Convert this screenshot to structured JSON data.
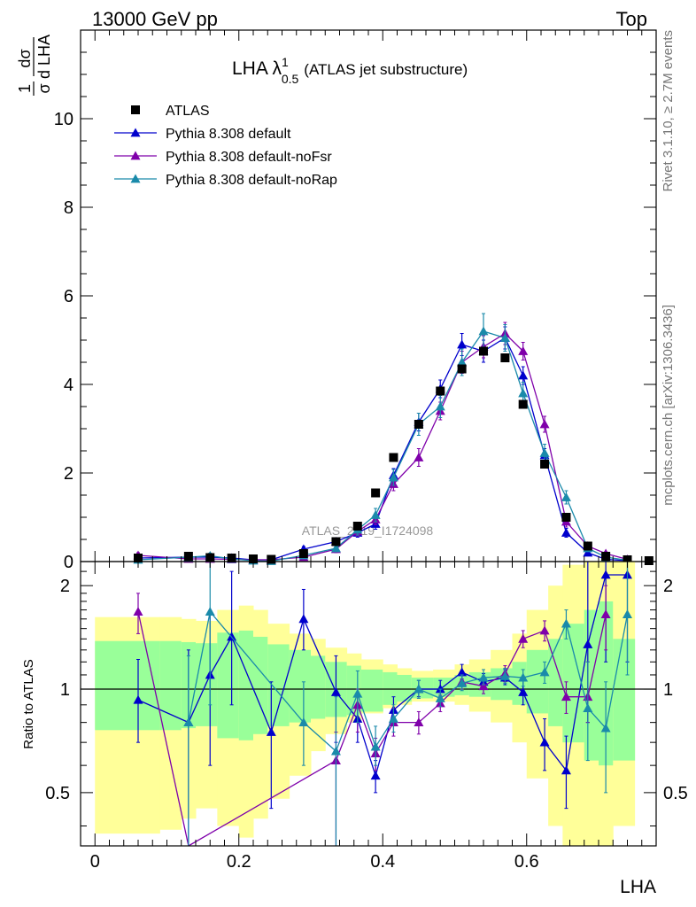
{
  "header": {
    "left": "13000 GeV pp",
    "right": "Top"
  },
  "side_text": {
    "rivet": "Rivet 3.1.10, ≥ 2.7M events",
    "mcplots": "mcplots.cern.ch [arXiv:1306.3436]"
  },
  "watermark": "ATLAS_2019_I1724098",
  "chart_data": [
    {
      "type": "line",
      "title": "LHA λ¹₀.₅ (ATLAS jet substructure)",
      "title_main": "LHA λ",
      "title_sup": "1",
      "title_sub": "0.5",
      "title_rest": "(ATLAS jet substructure)",
      "ylabel": "1/σ dσ/d LHA",
      "xlabel": "LHA",
      "xlim": [
        -0.02,
        0.78
      ],
      "ylim": [
        0,
        12
      ],
      "yticks": [
        0,
        2,
        4,
        6,
        8,
        10
      ],
      "legend_position": "top-left",
      "data_series": {
        "name": "ATLAS",
        "color": "#000000",
        "x": [
          0.06,
          0.13,
          0.16,
          0.19,
          0.22,
          0.245,
          0.29,
          0.335,
          0.365,
          0.39,
          0.415,
          0.45,
          0.48,
          0.51,
          0.54,
          0.57,
          0.595,
          0.625,
          0.655,
          0.685,
          0.71,
          0.74,
          0.77
        ],
        "y": [
          0.08,
          0.12,
          0.09,
          0.08,
          0.06,
          0.05,
          0.18,
          0.45,
          0.8,
          1.55,
          2.35,
          3.1,
          3.85,
          4.35,
          4.75,
          4.6,
          3.55,
          2.2,
          1.0,
          0.35,
          0.12,
          0.04,
          0.02
        ]
      },
      "series": [
        {
          "name": "Pythia 8.308 default",
          "color": "#0000cc",
          "x": [
            0.06,
            0.13,
            0.16,
            0.19,
            0.22,
            0.245,
            0.29,
            0.335,
            0.365,
            0.39,
            0.415,
            0.45,
            0.48,
            0.51,
            0.54,
            0.57,
            0.595,
            0.625,
            0.655,
            0.685,
            0.71,
            0.74
          ],
          "y": [
            0.08,
            0.1,
            0.1,
            0.08,
            0.04,
            0.04,
            0.28,
            0.45,
            0.65,
            0.85,
            1.95,
            3.15,
            3.9,
            4.9,
            4.75,
            5.05,
            4.2,
            2.4,
            0.65,
            0.2,
            0.05,
            0.02
          ],
          "err": [
            0.05,
            0.04,
            0.04,
            0.04,
            0.03,
            0.03,
            0.06,
            0.08,
            0.1,
            0.12,
            0.15,
            0.2,
            0.2,
            0.25,
            0.25,
            0.25,
            0.2,
            0.15,
            0.1,
            0.05,
            0.03,
            0.02
          ]
        },
        {
          "name": "Pythia 8.308 default-noFsr",
          "color": "#7f00aa",
          "x": [
            0.06,
            0.13,
            0.16,
            0.19,
            0.22,
            0.245,
            0.29,
            0.335,
            0.365,
            0.39,
            0.415,
            0.45,
            0.48,
            0.51,
            0.54,
            0.57,
            0.595,
            0.625,
            0.655,
            0.685,
            0.71,
            0.74
          ],
          "y": [
            0.14,
            0.06,
            0.06,
            0.05,
            0.04,
            0.04,
            0.1,
            0.28,
            0.68,
            0.95,
            1.75,
            2.35,
            3.4,
            4.5,
            4.85,
            5.15,
            4.75,
            3.1,
            0.9,
            0.35,
            0.18,
            0.05
          ],
          "err": [
            0.06,
            0.04,
            0.04,
            0.03,
            0.03,
            0.03,
            0.05,
            0.08,
            0.1,
            0.12,
            0.15,
            0.2,
            0.2,
            0.25,
            0.25,
            0.25,
            0.2,
            0.18,
            0.12,
            0.06,
            0.04,
            0.02
          ]
        },
        {
          "name": "Pythia 8.308 default-noRap",
          "color": "#1a8aaa",
          "x": [
            0.06,
            0.13,
            0.16,
            0.19,
            0.22,
            0.245,
            0.29,
            0.335,
            0.365,
            0.39,
            0.415,
            0.45,
            0.48,
            0.51,
            0.54,
            0.57,
            0.595,
            0.625,
            0.655,
            0.685,
            0.71,
            0.74
          ],
          "y": [
            0.04,
            0.1,
            0.13,
            0.06,
            0.02,
            0.01,
            0.14,
            0.3,
            0.72,
            1.05,
            1.9,
            3.1,
            3.5,
            4.5,
            5.2,
            5.05,
            3.8,
            2.45,
            1.45,
            0.3,
            0.1,
            0.03
          ],
          "err": [
            0.05,
            0.04,
            0.06,
            0.04,
            0.03,
            0.03,
            0.05,
            0.08,
            0.12,
            0.15,
            0.18,
            0.25,
            0.25,
            0.3,
            0.4,
            0.3,
            0.25,
            0.2,
            0.15,
            0.06,
            0.04,
            0.02
          ]
        }
      ]
    },
    {
      "type": "line",
      "title": "",
      "ylabel": "Ratio to ATLAS",
      "xlabel": "LHA",
      "xlim": [
        -0.02,
        0.78
      ],
      "ylim": [
        0.35,
        2.35
      ],
      "yscale": "log",
      "yticks": [
        0.5,
        1,
        2
      ],
      "xticks": [
        0,
        0.2,
        0.4,
        0.6
      ],
      "band_edges": [
        0,
        0.09,
        0.12,
        0.14,
        0.17,
        0.2,
        0.22,
        0.24,
        0.27,
        0.3,
        0.32,
        0.35,
        0.37,
        0.4,
        0.42,
        0.44,
        0.47,
        0.5,
        0.52,
        0.55,
        0.58,
        0.6,
        0.63,
        0.65,
        0.68,
        0.7,
        0.72,
        0.75
      ],
      "band_stat_low": [
        0.76,
        0.76,
        0.77,
        0.78,
        0.72,
        0.71,
        0.74,
        0.78,
        0.8,
        0.82,
        0.83,
        0.84,
        0.86,
        0.9,
        0.92,
        0.94,
        0.95,
        0.96,
        0.95,
        0.93,
        0.9,
        0.85,
        0.78,
        0.7,
        0.62,
        0.6,
        0.62
      ],
      "band_stat_high": [
        1.38,
        1.38,
        1.37,
        1.36,
        1.46,
        1.48,
        1.42,
        1.35,
        1.3,
        1.25,
        1.2,
        1.17,
        1.14,
        1.12,
        1.1,
        1.08,
        1.08,
        1.1,
        1.12,
        1.15,
        1.2,
        1.3,
        1.4,
        1.55,
        1.7,
        1.8,
        1.4
      ],
      "band_sys_low": [
        0.38,
        0.39,
        0.42,
        0.45,
        0.4,
        0.37,
        0.42,
        0.48,
        0.56,
        0.66,
        0.74,
        0.8,
        0.85,
        0.88,
        0.9,
        0.92,
        0.92,
        0.9,
        0.86,
        0.8,
        0.7,
        0.55,
        0.4,
        0.35,
        0.35,
        0.35,
        0.4
      ],
      "band_sys_high": [
        1.62,
        1.62,
        1.6,
        1.58,
        1.7,
        1.75,
        1.7,
        1.55,
        1.45,
        1.4,
        1.32,
        1.27,
        1.22,
        1.18,
        1.15,
        1.13,
        1.14,
        1.18,
        1.22,
        1.3,
        1.45,
        1.7,
        2.0,
        2.3,
        2.35,
        2.35,
        2.35
      ],
      "stat_color": "#99ff99",
      "sys_color": "#ffff99",
      "series": [
        {
          "name": "Pythia 8.308 default",
          "color": "#0000cc",
          "x": [
            0.06,
            0.13,
            0.16,
            0.19,
            0.245,
            0.29,
            0.335,
            0.365,
            0.39,
            0.415,
            0.45,
            0.48,
            0.51,
            0.54,
            0.57,
            0.595,
            0.625,
            0.655,
            0.685,
            0.71,
            0.74
          ],
          "y": [
            0.93,
            0.8,
            1.1,
            1.42,
            0.75,
            1.6,
            0.98,
            0.82,
            0.56,
            0.87,
            1.0,
            1.0,
            1.12,
            1.05,
            1.08,
            0.98,
            0.7,
            0.58,
            1.35,
            2.15,
            2.15
          ],
          "elo": [
            0.7,
            0.35,
            0.6,
            0.9,
            0.45,
            1.3,
            0.7,
            0.7,
            0.5,
            0.8,
            0.95,
            0.95,
            1.07,
            1.0,
            1.03,
            0.9,
            0.58,
            0.45,
            0.8,
            1.2,
            1.2
          ],
          "ehi": [
            1.22,
            1.3,
            1.65,
            2.2,
            1.05,
            1.95,
            1.25,
            0.97,
            0.62,
            0.95,
            1.06,
            1.06,
            1.18,
            1.11,
            1.14,
            1.06,
            0.82,
            0.73,
            2.35,
            2.35,
            2.35
          ]
        },
        {
          "name": "Pythia 8.308 default-noFsr",
          "color": "#7f00aa",
          "x": [
            0.06,
            0.13,
            0.335,
            0.365,
            0.39,
            0.415,
            0.45,
            0.48,
            0.51,
            0.54,
            0.57,
            0.595,
            0.625,
            0.655,
            0.685,
            0.71
          ],
          "y": [
            1.68,
            0.35,
            0.62,
            0.9,
            0.65,
            0.8,
            0.8,
            0.91,
            1.05,
            1.02,
            1.11,
            1.4,
            1.48,
            0.95,
            0.95,
            1.65
          ],
          "elo": [
            1.45,
            0.35,
            0.35,
            0.75,
            0.58,
            0.73,
            0.74,
            0.86,
            1.0,
            0.97,
            1.05,
            1.32,
            1.38,
            0.85,
            0.8,
            1.3
          ],
          "ehi": [
            1.9,
            0.35,
            0.75,
            1.0,
            0.72,
            0.88,
            0.86,
            0.96,
            1.1,
            1.07,
            1.17,
            1.48,
            1.58,
            1.05,
            1.2,
            2.0
          ]
        },
        {
          "name": "Pythia 8.308 default-noRap",
          "color": "#1a8aaa",
          "x": [
            0.13,
            0.16,
            0.29,
            0.335,
            0.365,
            0.39,
            0.415,
            0.45,
            0.48,
            0.51,
            0.54,
            0.57,
            0.595,
            0.625,
            0.655,
            0.685,
            0.71,
            0.74
          ],
          "y": [
            0.8,
            1.68,
            0.8,
            0.66,
            0.97,
            0.68,
            0.82,
            1.0,
            0.94,
            1.04,
            1.08,
            1.09,
            1.08,
            1.12,
            1.55,
            0.88,
            0.77,
            1.65
          ],
          "elo": [
            0.35,
            0.9,
            0.6,
            0.35,
            0.8,
            0.6,
            0.75,
            0.94,
            0.89,
            0.99,
            1.03,
            1.04,
            1.02,
            1.04,
            1.4,
            0.62,
            0.5,
            1.1
          ],
          "ehi": [
            1.25,
            2.35,
            1.05,
            0.95,
            1.13,
            0.78,
            0.9,
            1.06,
            1.0,
            1.1,
            1.14,
            1.15,
            1.14,
            1.2,
            1.7,
            1.2,
            1.05,
            2.35
          ]
        }
      ]
    }
  ]
}
